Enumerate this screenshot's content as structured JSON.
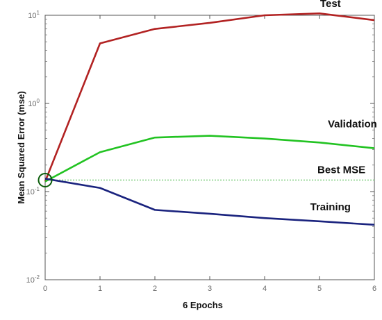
{
  "chart_data": {
    "type": "line",
    "title": "",
    "xlabel": "6 Epochs",
    "ylabel": "Mean Squared Error  (mse)",
    "x": [
      0,
      1,
      2,
      3,
      4,
      5,
      6
    ],
    "xlim": [
      0,
      6
    ],
    "ylim": [
      0.01,
      10
    ],
    "yscale": "log",
    "x_ticks": [
      "0",
      "1",
      "2",
      "3",
      "4",
      "5",
      "6"
    ],
    "y_ticks": [
      {
        "value": 10,
        "base": "10",
        "exp": "1"
      },
      {
        "value": 1,
        "base": "10",
        "exp": "0"
      },
      {
        "value": 0.1,
        "base": "10",
        "exp": "-1"
      },
      {
        "value": 0.01,
        "base": "10",
        "exp": "-2"
      }
    ],
    "grid": false,
    "series": [
      {
        "name": "Test",
        "color": "#b22222",
        "values": [
          0.13,
          4.8,
          7.0,
          8.2,
          10.0,
          10.5,
          8.8
        ]
      },
      {
        "name": "Validation",
        "color": "#22c322",
        "values": [
          0.13,
          0.28,
          0.41,
          0.43,
          0.4,
          0.36,
          0.31
        ]
      },
      {
        "name": "Training",
        "color": "#1a237e",
        "values": [
          0.14,
          0.11,
          0.062,
          0.056,
          0.05,
          0.046,
          0.042
        ]
      }
    ],
    "best": {
      "label": "Best MSE",
      "epoch": 0,
      "value": 0.135,
      "line_color": "#8fd48f",
      "marker_color": "#0a5c0a"
    },
    "labels": [
      {
        "text": "Test",
        "series": 0
      },
      {
        "text": "Validation",
        "series": 1
      },
      {
        "text": "Best MSE",
        "series": null
      },
      {
        "text": "Training",
        "series": 2
      }
    ]
  }
}
